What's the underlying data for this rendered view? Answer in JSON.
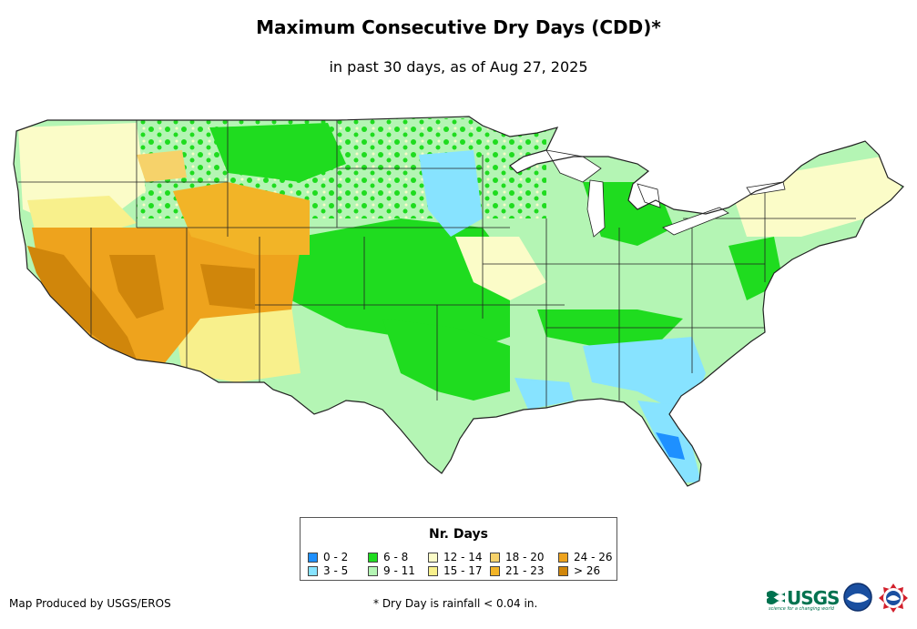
{
  "header": {
    "title": "Maximum Consecutive Dry Days (CDD)*",
    "subtitle": "in past 30 days, as of Aug 27, 2025"
  },
  "legend": {
    "title": "Nr. Days",
    "items": [
      {
        "label": "0 - 2",
        "color": "#1e90ff"
      },
      {
        "label": "3 - 5",
        "color": "#87e3ff"
      },
      {
        "label": "6 - 8",
        "color": "#1fdc1f"
      },
      {
        "label": "9 - 11",
        "color": "#b4f5b4"
      },
      {
        "label": "12 - 14",
        "color": "#fbfcc8"
      },
      {
        "label": "15 - 17",
        "color": "#f8f08c"
      },
      {
        "label": "18 - 20",
        "color": "#f6d26a"
      },
      {
        "label": "21 - 23",
        "color": "#f2b427"
      },
      {
        "label": "24 - 26",
        "color": "#eea31d"
      },
      {
        "label": "> 26",
        "color": "#d0860b"
      }
    ]
  },
  "footer": {
    "credit": "Map Produced by USGS/EROS",
    "footnote": "* Dry Day is rainfall < 0.04 in.",
    "usgs_logo_text": "USGS",
    "usgs_tagline": "science for a changing world"
  }
}
